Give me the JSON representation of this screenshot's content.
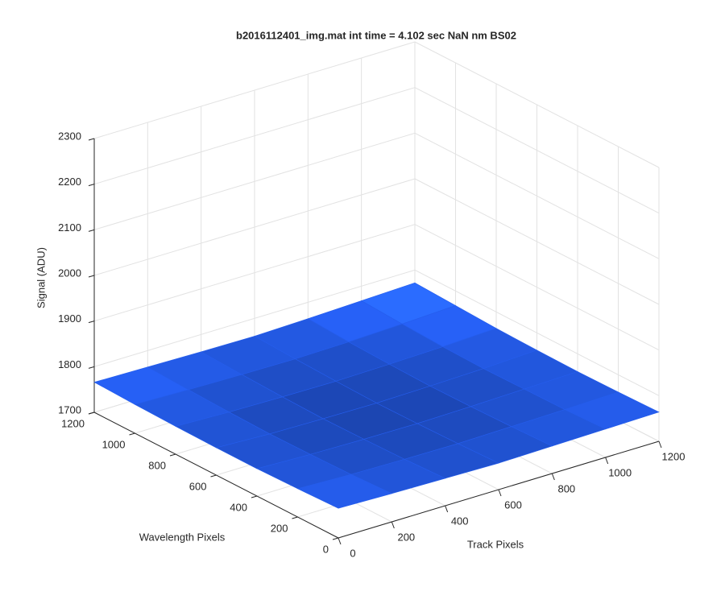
{
  "chart_data": {
    "type": "surface",
    "title": "b2016112401_img.mat int time = 4.102 sec  NaN nm BS02",
    "xlabel": "Track Pixels",
    "ylabel": "Wavelength Pixels",
    "zlabel": "Signal (ADU)",
    "x": [
      0,
      200,
      400,
      600,
      800,
      1000,
      1200
    ],
    "y": [
      0,
      200,
      400,
      600,
      800,
      1000,
      1200
    ],
    "z": [
      [
        1765,
        1762,
        1760,
        1758,
        1760,
        1762,
        1764
      ],
      [
        1762,
        1758,
        1756,
        1755,
        1757,
        1759,
        1762
      ],
      [
        1760,
        1756,
        1754,
        1753,
        1755,
        1758,
        1761
      ],
      [
        1760,
        1755,
        1753,
        1752,
        1754,
        1757,
        1762
      ],
      [
        1761,
        1757,
        1755,
        1754,
        1756,
        1759,
        1764
      ],
      [
        1763,
        1760,
        1758,
        1757,
        1759,
        1763,
        1768
      ],
      [
        1766,
        1764,
        1762,
        1761,
        1764,
        1768,
        1772
      ]
    ],
    "color": "#2358e0",
    "xlim": [
      0,
      1200
    ],
    "ylim": [
      0,
      1200
    ],
    "zlim": [
      1700,
      2300
    ],
    "xticks": [
      0,
      200,
      400,
      600,
      800,
      1000,
      1200
    ],
    "yticks": [
      0,
      200,
      400,
      600,
      800,
      1000,
      1200
    ],
    "zticks": [
      1700,
      1800,
      1900,
      2000,
      2100,
      2200,
      2300
    ],
    "grid": true
  }
}
